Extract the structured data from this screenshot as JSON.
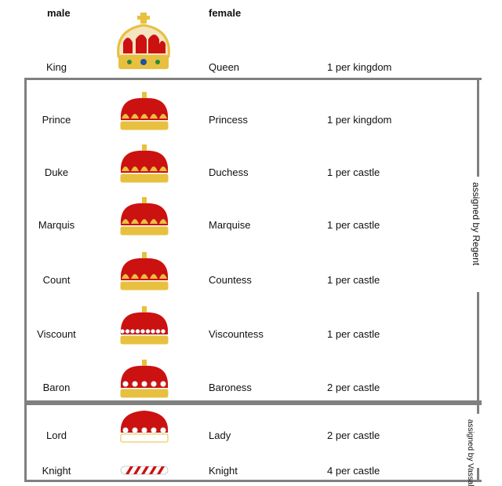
{
  "headers": {
    "male": "male",
    "female": "female"
  },
  "colors": {
    "frame": "#808080",
    "velvet": "#cc1111",
    "gold": "#e8c040"
  },
  "groups": {
    "regent": "assigned by Regent",
    "vassal": "assigned by Vassal"
  },
  "ranks": [
    {
      "male": "King",
      "female": "Queen",
      "count": "1 per kingdom",
      "crown": "royal-crown-icon"
    },
    {
      "male": "Prince",
      "female": "Princess",
      "count": "1 per kingdom",
      "crown": "prince-coronet-icon"
    },
    {
      "male": "Duke",
      "female": "Duchess",
      "count": "1 per castle",
      "crown": "ducal-coronet-icon"
    },
    {
      "male": "Marquis",
      "female": "Marquise",
      "count": "1 per castle",
      "crown": "marquis-coronet-icon"
    },
    {
      "male": "Count",
      "female": "Countess",
      "count": "1 per castle",
      "crown": "count-coronet-icon"
    },
    {
      "male": "Viscount",
      "female": "Viscountess",
      "count": "1 per castle",
      "crown": "viscount-coronet-icon"
    },
    {
      "male": "Baron",
      "female": "Baroness",
      "count": "2 per castle",
      "crown": "baron-coronet-icon"
    },
    {
      "male": "Lord",
      "female": "Lady",
      "count": "2 per castle",
      "crown": "lord-cap-icon"
    },
    {
      "male": "Knight",
      "female": "Knight",
      "count": "4 per castle",
      "crown": "knight-wreath-icon"
    }
  ]
}
